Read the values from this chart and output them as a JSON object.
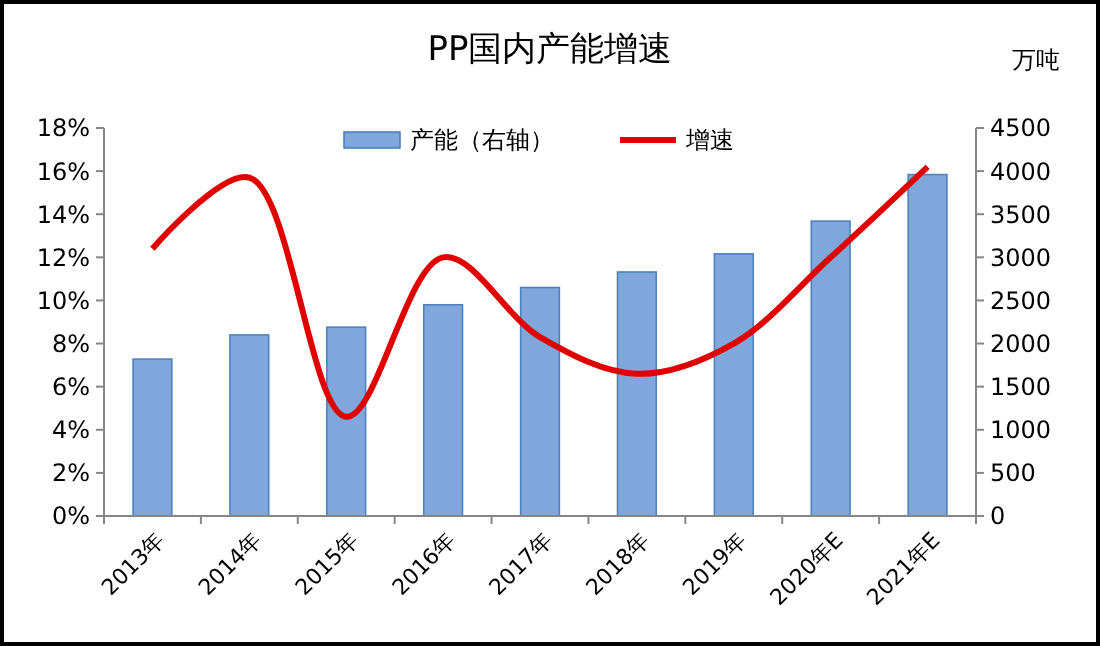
{
  "chart_data": {
    "type": "bar",
    "title": "PP国内产能增速",
    "y2label": "万吨",
    "categories": [
      "2013年",
      "2014年",
      "2015年",
      "2016年",
      "2017年",
      "2018年",
      "2019年",
      "2020年E",
      "2021年E"
    ],
    "series": [
      {
        "name": "产能（右轴）",
        "axis": "y2",
        "color": "#7fa7dc",
        "values": [
          1820,
          2100,
          2190,
          2450,
          2650,
          2830,
          3040,
          3420,
          3960
        ]
      },
      {
        "name": "增速",
        "type": "line",
        "color": "#e00000",
        "marker": "none",
        "values": [
          12.4,
          15.7,
          4.6,
          12.0,
          8.3,
          6.6,
          8.0,
          12.0,
          16.2
        ]
      }
    ],
    "ylim": [
      0,
      18
    ],
    "yticks": [
      {
        "value": 0,
        "label": "0%"
      },
      {
        "value": 2,
        "label": "2%"
      },
      {
        "value": 4,
        "label": "4%"
      },
      {
        "value": 6,
        "label": "6%"
      },
      {
        "value": 8,
        "label": "8%"
      },
      {
        "value": 10,
        "label": "10%"
      },
      {
        "value": 12,
        "label": "12%"
      },
      {
        "value": 14,
        "label": "14%"
      },
      {
        "value": 16,
        "label": "16%"
      },
      {
        "value": 18,
        "label": "18%"
      }
    ],
    "y2lim": [
      0,
      4500
    ],
    "y2ticks": [
      0,
      500,
      1000,
      1500,
      2000,
      2500,
      3000,
      3500,
      4000,
      4500
    ],
    "legend": "top",
    "grid": false
  }
}
